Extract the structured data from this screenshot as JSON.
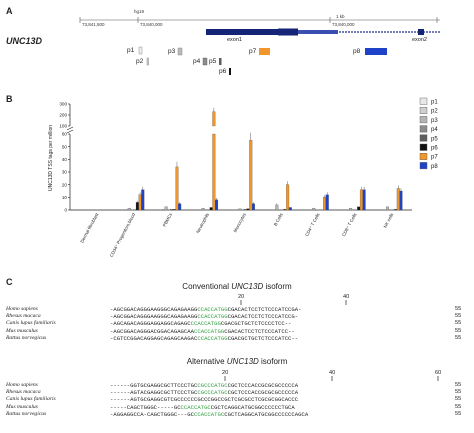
{
  "panels": {
    "a": "A",
    "b": "B",
    "c": "C"
  },
  "panelA": {
    "gene": "UNC13D",
    "assembly": "hg19",
    "coord_left": "73,841,500",
    "coord_mid": "73,840,000",
    "coord_right": "73,840,000",
    "scale_label": "1 kb",
    "exon1": "exon1",
    "exon2": "exon2",
    "probes": [
      "p1",
      "p2",
      "p3",
      "p4",
      "p5",
      "p6",
      "p7",
      "p8"
    ]
  },
  "chart_data": {
    "type": "bar",
    "ylabel": "UNC13D TSS tags per million",
    "y_ticks_lower": [
      "0",
      "10",
      "20",
      "30",
      "40",
      "50",
      "60"
    ],
    "y_ticks_upper": [
      "100",
      "200",
      "300"
    ],
    "categories": [
      "Dermal fibroblast",
      "CD34⁺ Progenitors,blood",
      "PBMCs",
      "Neutrophils",
      "Monocytes",
      "B Cells",
      "CD4⁺ T Cells",
      "CD8⁺ T Cells",
      "NK cells"
    ],
    "series": [
      {
        "name": "p1",
        "color": "#e8e8e8",
        "values": [
          0,
          0,
          0.3,
          0,
          0,
          0,
          0,
          0,
          0
        ]
      },
      {
        "name": "p2",
        "color": "#cfcfcf",
        "values": [
          0,
          0.4,
          0.5,
          0,
          0,
          0,
          0,
          0.3,
          0.4
        ]
      },
      {
        "name": "p3",
        "color": "#b4b4b4",
        "values": [
          0,
          1.5,
          2.5,
          1.5,
          1,
          4,
          1.5,
          1.5,
          2.5
        ]
      },
      {
        "name": "p4",
        "color": "#8c8c8c",
        "values": [
          0,
          0,
          0,
          0,
          0,
          0,
          0,
          0,
          0
        ]
      },
      {
        "name": "p5",
        "color": "#5e5e5e",
        "values": [
          0,
          0.3,
          0.5,
          0,
          0.5,
          0,
          0,
          0,
          0
        ]
      },
      {
        "name": "p6",
        "color": "#111111",
        "values": [
          0,
          6,
          0.5,
          2,
          1,
          0.5,
          0,
          2.5,
          0.5
        ]
      },
      {
        "name": "p7",
        "color": "#f0962a",
        "values": [
          0,
          12,
          34,
          230,
          55,
          20,
          10,
          16,
          17
        ]
      },
      {
        "name": "p8",
        "color": "#1f43c8",
        "values": [
          0,
          16,
          5,
          8,
          5,
          2,
          12,
          16,
          15
        ]
      }
    ]
  },
  "panelC": {
    "title1_pre": "Conventional ",
    "title1_gene": "UNC13D",
    "title1_post": " isoform",
    "title2_pre": "Alternative ",
    "title2_gene": "UNC13D",
    "title2_post": " isoform",
    "ruler1": [
      "20",
      "40"
    ],
    "ruler2": [
      "20",
      "40",
      "60"
    ],
    "species1": [
      "Homo sapiens",
      "Rhesus macaca",
      "Canis lupus familiaris",
      "Mus musculus",
      "Rattus norvegicus"
    ],
    "seq1": [
      "-AGCGGACAGGGAAGGGCAGAGAAGGCCACCATGGCGACACTCCTCTCCCATCCGA-",
      "-AGCGGACAGGGAAGGGCAGAGAAGGCCACCATGGCGACACTCCTCTCCCATCCG-",
      "-AGCAGACAGGGAGGAGGCAGAGCCCACCATGGCGACGCTGCTCTCCCCTCC--",
      "-AGCGGACAGGGACGGACAGAGCAACCACCATGGCGACACTCCTCTCCCATCC--",
      "-CGTCCGGACAGGAGCAGAGCAAGACCCACCATGGCGACGCTGCTCTCCCATCC--"
    ],
    "len1": [
      "55",
      "55",
      "55",
      "55",
      "55"
    ],
    "species2": [
      "Homo sapiens",
      "Rhesus macaca",
      "Canis lupus familiaris",
      "Mus musculus",
      "Rattus norvegicus"
    ],
    "seq2": [
      "------GGTGCGAGGCGCTTCCCTGCCGCCCATGCCGCTCCCACCGCGCGCCCCCA",
      "------AGTACGAGGCGCTTCCCTGCCGCCCATGCCGCTCCCACCGCGCGCCCCCA",
      "------AGTGCGAGGCGTCGCCCCCCGCCCGGCCGCTCGCGCCTCGCGCGGCACCC",
      "-----CAGCTGGGC-----GCCCACCATGCCGCTCAGGCATGCGGCCCCCCTGCA",
      "-AGGAGGCCA-CAGCTGGGC---GCCCACCATGCCGCTCAGGCATGCGGCCCCCCAGCA"
    ],
    "len2": [
      "55",
      "55",
      "55",
      "55",
      "55"
    ]
  }
}
